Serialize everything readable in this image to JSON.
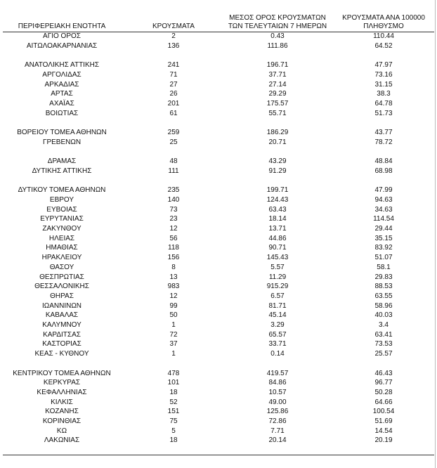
{
  "table": {
    "headers": [
      [
        "ΠΕΡΙΦΕΡΕΙΑΚΗ ΕΝΟΤΗΤΑ"
      ],
      [
        "ΚΡΟΥΣΜΑΤΑ"
      ],
      [
        "ΜΕΣΟΣ ΟΡΟΣ ΚΡΟΥΣΜΑΤΩΝ",
        "ΤΩΝ ΤΕΛΕΥΤΑΙΩΝ 7 ΗΜΕΡΩΝ"
      ],
      [
        "ΚΡΟΥΣΜΑΤΑ ΑΝΑ 100000",
        "ΠΛΗΘΥΣΜΟ"
      ]
    ],
    "groups": [
      [
        [
          "ΑΓΙΟ ΟΡΟΣ",
          "2",
          "0.43",
          "110.44"
        ],
        [
          "ΑΙΤΩΛΟΑΚΑΡΝΑΝΙΑΣ",
          "136",
          "111.86",
          "64.52"
        ]
      ],
      [
        [
          "ΑΝΑΤΟΛΙΚΗΣ ΑΤΤΙΚΗΣ",
          "241",
          "196.71",
          "47.97"
        ],
        [
          "ΑΡΓΟΛΙΔΑΣ",
          "71",
          "37.71",
          "73.16"
        ],
        [
          "ΑΡΚΑΔΙΑΣ",
          "27",
          "27.14",
          "31.15"
        ],
        [
          "ΑΡΤΑΣ",
          "26",
          "29.29",
          "38.3"
        ],
        [
          "ΑΧΑΪΑΣ",
          "201",
          "175.57",
          "64.78"
        ],
        [
          "ΒΟΙΩΤΙΑΣ",
          "61",
          "55.71",
          "51.73"
        ]
      ],
      [
        [
          "ΒΟΡΕΙΟΥ ΤΟΜΕΑ ΑΘΗΝΩΝ",
          "259",
          "186.29",
          "43.77"
        ],
        [
          "ΓΡΕΒΕΝΩΝ",
          "25",
          "20.71",
          "78.72"
        ]
      ],
      [
        [
          "ΔΡΑΜΑΣ",
          "48",
          "43.29",
          "48.84"
        ],
        [
          "ΔΥΤΙΚΗΣ ΑΤΤΙΚΗΣ",
          "111",
          "91.29",
          "68.98"
        ]
      ],
      [
        [
          "ΔΥΤΙΚΟΥ ΤΟΜΕΑ ΑΘΗΝΩΝ",
          "235",
          "199.71",
          "47.99"
        ],
        [
          "ΕΒΡΟΥ",
          "140",
          "124.43",
          "94.63"
        ],
        [
          "ΕΥΒΟΙΑΣ",
          "73",
          "63.43",
          "34.63"
        ],
        [
          "ΕΥΡΥΤΑΝΙΑΣ",
          "23",
          "18.14",
          "114.54"
        ],
        [
          "ΖΑΚΥΝΘΟΥ",
          "12",
          "13.71",
          "29.44"
        ],
        [
          "ΗΛΕΙΑΣ",
          "56",
          "44.86",
          "35.15"
        ],
        [
          "ΗΜΑΘΙΑΣ",
          "118",
          "90.71",
          "83.92"
        ],
        [
          "ΗΡΑΚΛΕΙΟΥ",
          "156",
          "145.43",
          "51.07"
        ],
        [
          "ΘΑΣΟΥ",
          "8",
          "5.57",
          "58.1"
        ],
        [
          "ΘΕΣΠΡΩΤΙΑΣ",
          "13",
          "11.29",
          "29.83"
        ],
        [
          "ΘΕΣΣΑΛΟΝΙΚΗΣ",
          "983",
          "915.29",
          "88.53"
        ],
        [
          "ΘΗΡΑΣ",
          "12",
          "6.57",
          "63.55"
        ],
        [
          "ΙΩΑΝΝΙΝΩΝ",
          "99",
          "81.71",
          "58.96"
        ],
        [
          "ΚΑΒΑΛΑΣ",
          "50",
          "45.14",
          "40.03"
        ],
        [
          "ΚΑΛΥΜΝΟΥ",
          "1",
          "3.29",
          "3.4"
        ],
        [
          "ΚΑΡΔΙΤΣΑΣ",
          "72",
          "65.57",
          "63.41"
        ],
        [
          "ΚΑΣΤΟΡΙΑΣ",
          "37",
          "33.71",
          "73.53"
        ],
        [
          "ΚΕΑΣ - ΚΥΘΝΟΥ",
          "1",
          "0.14",
          "25.57"
        ]
      ],
      [
        [
          "ΚΕΝΤΡΙΚΟΥ ΤΟΜΕΑ ΑΘΗΝΩΝ",
          "478",
          "419.57",
          "46.43"
        ],
        [
          "ΚΕΡΚΥΡΑΣ",
          "101",
          "84.86",
          "96.77"
        ],
        [
          "ΚΕΦΑΛΛΗΝΙΑΣ",
          "18",
          "10.57",
          "50.28"
        ],
        [
          "ΚΙΛΚΙΣ",
          "52",
          "49.00",
          "64.66"
        ],
        [
          "ΚΟΖΑΝΗΣ",
          "151",
          "125.86",
          "100.54"
        ],
        [
          "ΚΟΡΙΝΘΙΑΣ",
          "75",
          "72.86",
          "51.69"
        ],
        [
          "ΚΩ",
          "5",
          "7.71",
          "14.54"
        ],
        [
          "ΛΑΚΩΝΙΑΣ",
          "18",
          "20.14",
          "20.19"
        ]
      ]
    ]
  }
}
